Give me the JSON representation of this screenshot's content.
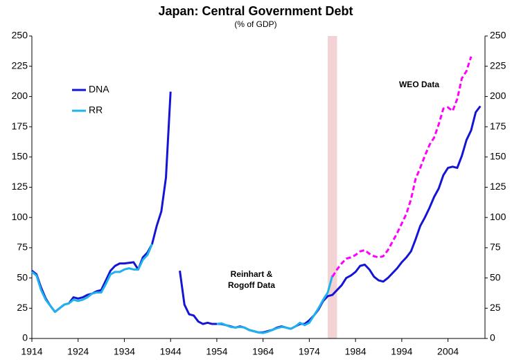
{
  "chart_data": {
    "type": "line",
    "title": "Japan: Central Government Debt",
    "subtitle": "(% of GDP)",
    "x": [
      1914,
      1915,
      1916,
      1917,
      1918,
      1919,
      1920,
      1921,
      1922,
      1923,
      1924,
      1925,
      1926,
      1927,
      1928,
      1929,
      1930,
      1931,
      1932,
      1933,
      1934,
      1935,
      1936,
      1937,
      1938,
      1939,
      1940,
      1941,
      1942,
      1943,
      1944,
      1945,
      1946,
      1947,
      1948,
      1949,
      1950,
      1951,
      1952,
      1953,
      1954,
      1955,
      1956,
      1957,
      1958,
      1959,
      1960,
      1961,
      1962,
      1963,
      1964,
      1965,
      1966,
      1967,
      1968,
      1969,
      1970,
      1971,
      1972,
      1973,
      1974,
      1975,
      1976,
      1977,
      1978,
      1979,
      1980,
      1981,
      1982,
      1983,
      1984,
      1985,
      1986,
      1987,
      1988,
      1989,
      1990,
      1991,
      1992,
      1993,
      1994,
      1995,
      1996,
      1997,
      1998,
      1999,
      2000,
      2001,
      2002,
      2003,
      2004,
      2005,
      2006,
      2007,
      2008,
      2009,
      2010,
      2011
    ],
    "series": [
      {
        "name": "DNA",
        "color": "#1414d6",
        "dashed": false,
        "legend": true,
        "values": [
          56,
          53,
          42,
          33,
          27,
          22,
          25,
          28,
          29,
          34,
          33,
          34,
          36,
          37,
          39,
          40,
          48,
          56,
          60,
          62,
          62,
          62.5,
          63,
          57,
          67,
          71,
          78,
          93,
          105,
          133,
          204,
          null,
          56,
          28,
          20,
          19,
          14,
          12,
          13,
          12,
          12,
          12,
          11,
          10,
          9,
          10,
          9,
          7,
          6,
          5,
          5,
          6,
          7,
          9,
          10,
          9,
          8,
          10,
          12,
          12,
          15,
          19,
          24,
          31,
          35,
          36,
          40,
          44,
          50,
          52,
          55,
          60,
          61,
          57,
          51,
          48,
          47,
          50,
          54,
          58,
          63,
          67,
          72,
          82,
          93,
          100,
          108,
          117,
          124,
          135,
          141,
          142,
          141,
          151,
          164,
          172,
          187,
          192
        ]
      },
      {
        "name": "RR",
        "color": "#1fb2ec",
        "dashed": false,
        "legend": true,
        "values": [
          55,
          52,
          40,
          32,
          27,
          22,
          25,
          28,
          29,
          32,
          31,
          32,
          34,
          37,
          38,
          38,
          45,
          53,
          55,
          55,
          57,
          58,
          57,
          57,
          65,
          69,
          78,
          null,
          null,
          null,
          null,
          null,
          null,
          null,
          null,
          null,
          null,
          null,
          null,
          null,
          12,
          12.5,
          11,
          9.5,
          9,
          9.5,
          9,
          7,
          6,
          5,
          4.5,
          5.5,
          7,
          8.5,
          9.5,
          9,
          8,
          10,
          13,
          11,
          13,
          19,
          25,
          32,
          38,
          52,
          null,
          null,
          null,
          null,
          null,
          null,
          null,
          null,
          null,
          null,
          null,
          null,
          null,
          null,
          null,
          null,
          null,
          null,
          null,
          null,
          null,
          null,
          null,
          null,
          null,
          null,
          null,
          null,
          null,
          null,
          null,
          null
        ]
      },
      {
        "name": "WEO Data",
        "color": "#ff00ff",
        "dashed": true,
        "legend": false,
        "values": [
          null,
          null,
          null,
          null,
          null,
          null,
          null,
          null,
          null,
          null,
          null,
          null,
          null,
          null,
          null,
          null,
          null,
          null,
          null,
          null,
          null,
          null,
          null,
          null,
          null,
          null,
          null,
          null,
          null,
          null,
          null,
          null,
          null,
          null,
          null,
          null,
          null,
          null,
          null,
          null,
          null,
          null,
          null,
          null,
          null,
          null,
          null,
          null,
          null,
          null,
          null,
          null,
          null,
          null,
          null,
          null,
          null,
          null,
          null,
          null,
          null,
          null,
          null,
          null,
          null,
          51,
          57,
          62,
          66,
          67,
          69,
          72,
          73,
          70,
          68,
          67,
          68,
          73,
          80,
          87,
          95,
          103,
          115,
          132,
          141,
          151,
          160,
          166,
          177,
          190,
          191,
          188,
          198,
          215,
          221,
          233,
          null,
          null
        ]
      }
    ],
    "annotations": [
      [
        "Reinhart &",
        "Rogoff Data"
      ]
    ],
    "annotation_color": "#1fb2ec",
    "shade": [
      1978,
      1980
    ],
    "shade_color": "#f2d2d4",
    "xlim": [
      1914,
      2012
    ],
    "xticks": [
      1914,
      1924,
      1934,
      1944,
      1954,
      1964,
      1974,
      1984,
      1994,
      2004
    ],
    "ylim": [
      0,
      250
    ],
    "yticks": [
      0,
      25,
      50,
      75,
      100,
      125,
      150,
      175,
      200,
      225,
      250
    ],
    "y2lim": [
      0,
      250
    ],
    "y2ticks": [
      0,
      25,
      50,
      75,
      100,
      125,
      150,
      175,
      200,
      225,
      250
    ],
    "grid": false,
    "legend_position": "upper left"
  }
}
